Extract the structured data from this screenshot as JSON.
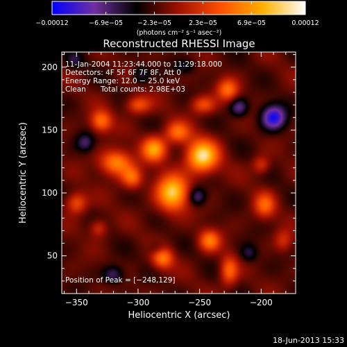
{
  "chart_data": {
    "type": "heatmap",
    "title": "Reconstructed RHESSI Image",
    "xlabel": "Heliocentric X (arcsec)",
    "ylabel": "Heliocentric Y (arcsec)",
    "xlim": [
      -362,
      -172
    ],
    "ylim": [
      20,
      212
    ],
    "xticks": [
      {
        "value": -350,
        "label": "−350"
      },
      {
        "value": -300,
        "label": "−300"
      },
      {
        "value": -250,
        "label": "−250"
      },
      {
        "value": -200,
        "label": "−200"
      }
    ],
    "yticks": [
      {
        "value": 50,
        "label": "50"
      },
      {
        "value": 100,
        "label": "100"
      },
      {
        "value": 150,
        "label": "150"
      },
      {
        "value": 200,
        "label": "200"
      }
    ],
    "colorbar": {
      "min": -0.00012,
      "max": 0.00012,
      "ticks": [
        {
          "value": -0.00012,
          "label": "−0.00012"
        },
        {
          "value": -6.9e-05,
          "label": "−6.9e−05"
        },
        {
          "value": -2.3e-05,
          "label": "−2.3e−05"
        },
        {
          "value": 2.3e-05,
          "label": "2.3e−05"
        },
        {
          "value": 6.9e-05,
          "label": "6.9e−05"
        },
        {
          "value": 0.00012,
          "label": "0.00012"
        }
      ],
      "unit_label": "(photons cm⁻² s⁻¹ asec⁻²)",
      "colors": [
        "#0000ff",
        "#7030a0",
        "#000000",
        "#a01000",
        "#ff5000",
        "#ffb000",
        "#ffffff"
      ]
    },
    "annotations": {
      "time_range": "11-Jan-2004 11:23:44.000 to 11:29:18.000",
      "detectors": "Detectors: 4F 5F 6F 7F 8F, Att 0",
      "energy_range": "Energy Range: 12.0 − 25.0 keV",
      "method": "Clean",
      "total_counts": "Total counts: 2.98E+03",
      "peak_position": "Position of Peak = [−248,129]"
    },
    "peak": {
      "x": -248,
      "y": 129
    },
    "footer_date": "18-Jun-2013 15:33",
    "sources": [
      {
        "x": -248,
        "y": 129,
        "sx": 9,
        "sy": 9,
        "amp": 1.0
      },
      {
        "x": -272,
        "y": 100,
        "sx": 9,
        "sy": 10,
        "amp": 0.92
      },
      {
        "x": -287,
        "y": 135,
        "sx": 7,
        "sy": 7,
        "amp": 0.75
      },
      {
        "x": -268,
        "y": 148,
        "sx": 7,
        "sy": 6,
        "amp": 0.55
      },
      {
        "x": -318,
        "y": 124,
        "sx": 9,
        "sy": 7,
        "amp": 0.7
      },
      {
        "x": -305,
        "y": 112,
        "sx": 6,
        "sy": 6,
        "amp": 0.55
      },
      {
        "x": -330,
        "y": 157,
        "sx": 6,
        "sy": 6,
        "amp": 0.6
      },
      {
        "x": -300,
        "y": 170,
        "sx": 7,
        "sy": 5,
        "amp": 0.5
      },
      {
        "x": -247,
        "y": 170,
        "sx": 7,
        "sy": 5,
        "amp": 0.45
      },
      {
        "x": -227,
        "y": 182,
        "sx": 6,
        "sy": 6,
        "amp": 0.55
      },
      {
        "x": -350,
        "y": 92,
        "sx": 6,
        "sy": 6,
        "amp": 0.5
      },
      {
        "x": -332,
        "y": 72,
        "sx": 5,
        "sy": 5,
        "amp": 0.35
      },
      {
        "x": -280,
        "y": 48,
        "sx": 6,
        "sy": 6,
        "amp": 0.6
      },
      {
        "x": -242,
        "y": 62,
        "sx": 6,
        "sy": 6,
        "amp": 0.6
      },
      {
        "x": -226,
        "y": 38,
        "sx": 5,
        "sy": 8,
        "amp": 0.55
      },
      {
        "x": -197,
        "y": 90,
        "sx": 6,
        "sy": 7,
        "amp": 0.5
      },
      {
        "x": -200,
        "y": 122,
        "sx": 5,
        "sy": 5,
        "amp": 0.35
      },
      {
        "x": -182,
        "y": 62,
        "sx": 5,
        "sy": 6,
        "amp": 0.3
      },
      {
        "x": -190,
        "y": 160,
        "sx": 7,
        "sy": 7,
        "amp": -0.75
      },
      {
        "x": -218,
        "y": 168,
        "sx": 5,
        "sy": 5,
        "amp": -0.45
      },
      {
        "x": -252,
        "y": 97,
        "sx": 5,
        "sy": 5,
        "amp": -0.45
      },
      {
        "x": -285,
        "y": 56,
        "sx": 5,
        "sy": 4,
        "amp": -0.2
      },
      {
        "x": -320,
        "y": 35,
        "sx": 6,
        "sy": 5,
        "amp": -0.4
      },
      {
        "x": -343,
        "y": 140,
        "sx": 5,
        "sy": 5,
        "amp": -0.35
      },
      {
        "x": -298,
        "y": 194,
        "sx": 5,
        "sy": 5,
        "amp": -0.3
      },
      {
        "x": -210,
        "y": 52,
        "sx": 5,
        "sy": 5,
        "amp": -0.3
      },
      {
        "x": -262,
        "y": 200,
        "sx": 6,
        "sy": 4,
        "amp": -0.25
      },
      {
        "x": -352,
        "y": 205,
        "sx": 5,
        "sy": 5,
        "amp": -0.25
      }
    ]
  }
}
